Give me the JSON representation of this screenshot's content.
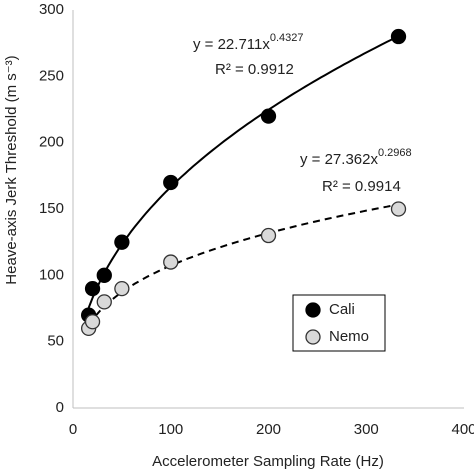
{
  "chart_data": {
    "type": "scatter",
    "xlabel": "Accelerometer Sampling Rate (Hz)",
    "ylabel": "Heave-axis Jerk Threshold (m s⁻³)",
    "xlim": [
      0,
      400
    ],
    "xticks": [
      0,
      100,
      200,
      300,
      400
    ],
    "ylim": [
      0,
      300
    ],
    "yticks": [
      0,
      50,
      100,
      150,
      200,
      250,
      300
    ],
    "grid": false,
    "legend": "lower right",
    "series": [
      {
        "name": "Cali",
        "color": "#000000",
        "edge": "#000000",
        "line_style": "solid",
        "x": [
          16,
          20,
          32,
          50,
          100,
          200,
          333
        ],
        "values": [
          70,
          90,
          100,
          125,
          170,
          220,
          280
        ],
        "equation": "y = 22.711x",
        "exponent": "0.4327",
        "r2": "R² = 0.9912"
      },
      {
        "name": "Nemo",
        "color": "#d9d9d9",
        "edge": "#333333",
        "line_style": "dashed",
        "x": [
          16,
          20,
          32,
          50,
          100,
          200,
          333
        ],
        "values": [
          60,
          65,
          80,
          90,
          110,
          130,
          150
        ],
        "equation": "y = 27.362x",
        "exponent": "0.2968",
        "r2": "R² = 0.9914"
      }
    ]
  }
}
